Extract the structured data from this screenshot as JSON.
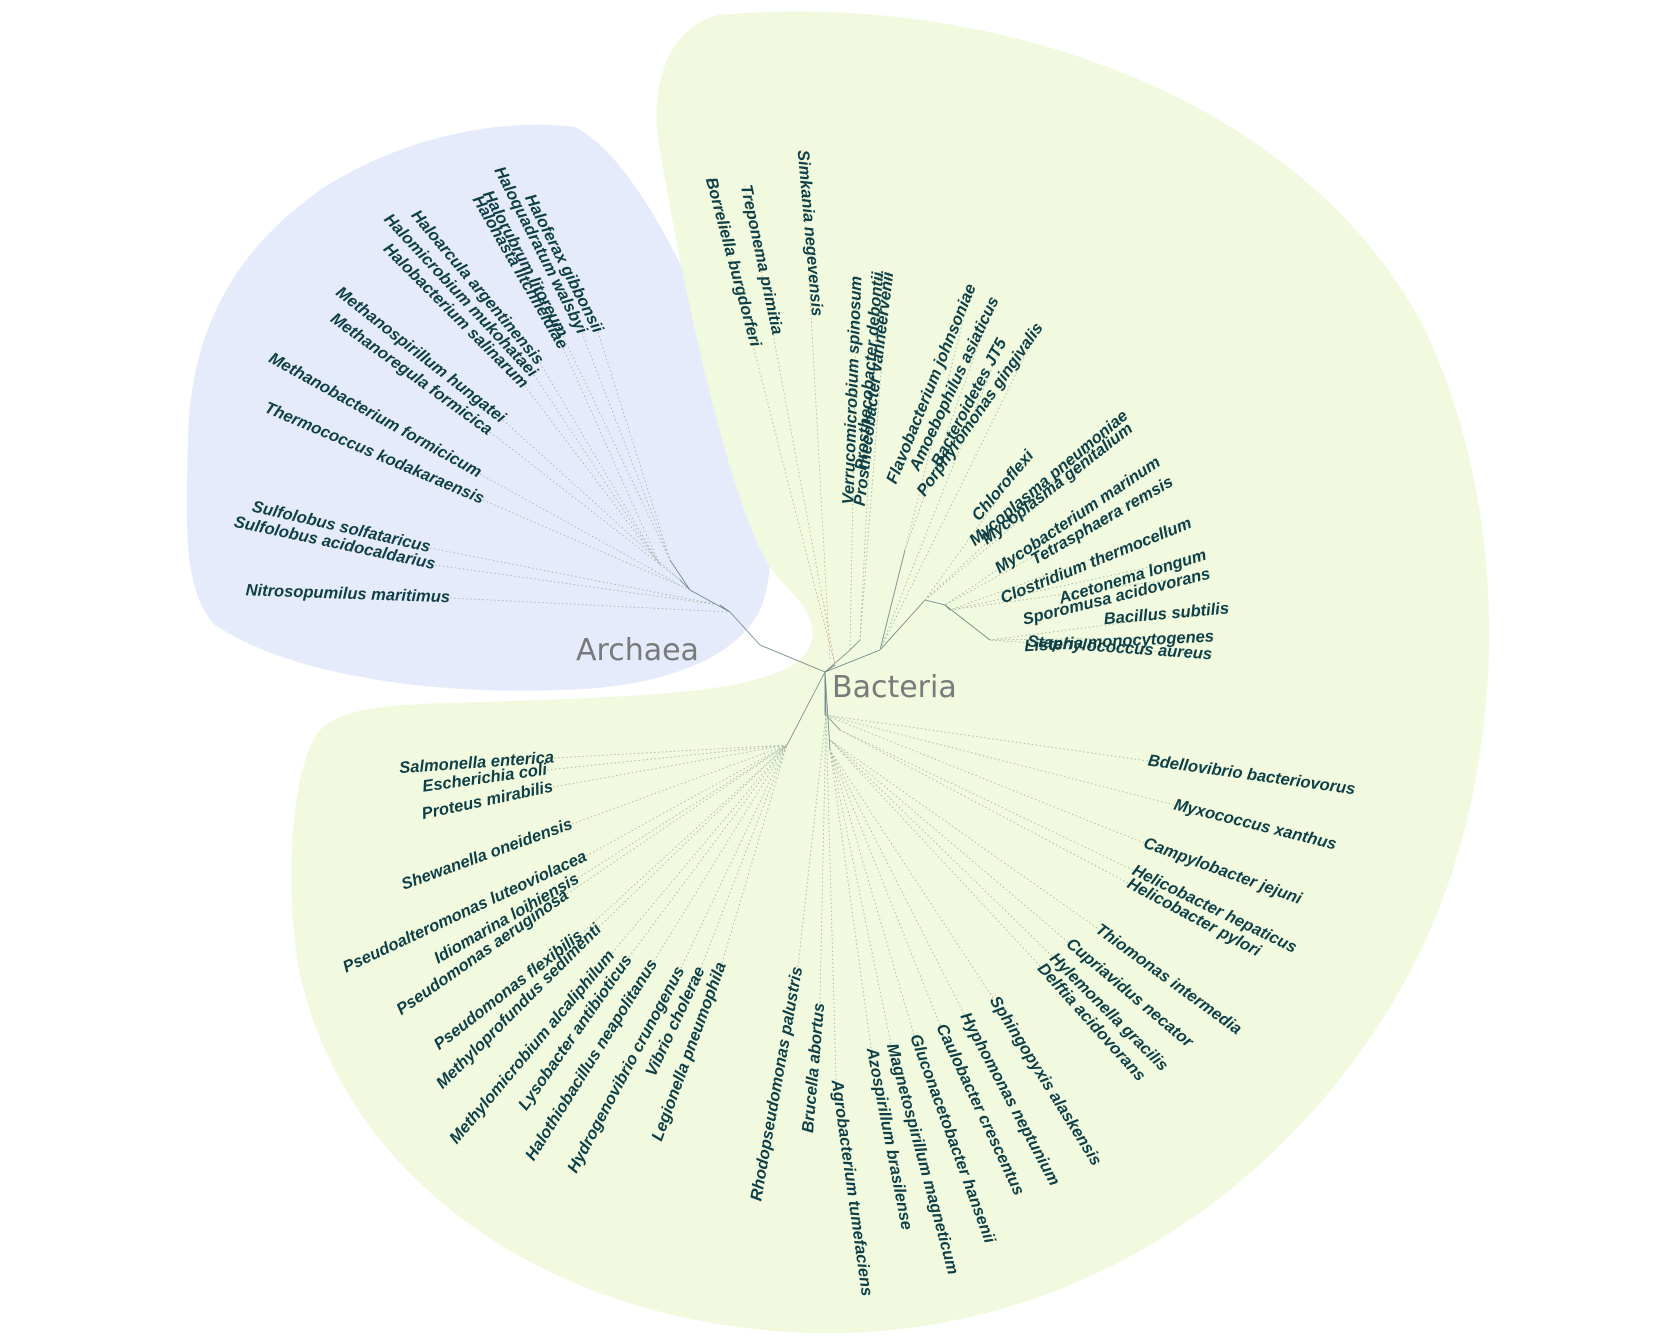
{
  "groups": {
    "archaea": {
      "label": "Archaea",
      "color": "#e6ebfb"
    },
    "bacteria": {
      "label": "Bacteria",
      "color": "#f1fadf"
    }
  },
  "colors": {
    "text": "#0e3f46",
    "branch": "#6b8486",
    "dots": "#9fb0a0"
  },
  "archaea_leaves": [
    "Haloferax gibbonsii",
    "Haloquadratum walsbyi",
    "Halorubrum litoreum",
    "Halohasta litchfieldiae",
    "Haloarcula argentinensis",
    "Halomicrobium mukohataei",
    "Halobacterium salinarum",
    "Methanospirillum hungatei",
    "Methanoregula formicica",
    "Methanobacterium formicicum",
    "Thermococcus kodakaraensis",
    "Sulfolobus solfataricus",
    "Sulfolobus acidocaldarius",
    "Nitrosopumilus maritimus"
  ],
  "bacteria_leaves": [
    "Borreliella burgdorferi",
    "Treponema primitia",
    "Simkania negevensis",
    "Verrucomicrobium spinosum",
    "Prosthecobacter debontii",
    "Prosthecobacter vanneervenii",
    "Flavobacterium johnsoniae",
    "Amoebophilus asiaticus",
    "Bacteroidetes JT5",
    "Porphyromonas gingivalis",
    "Chloroflexi",
    "Mycoplasma pneumoniae",
    "Mycoplasma genitalium",
    "Mycobacterium marinum",
    "Tetrasphaera remsis",
    "Clostridium thermocellum",
    "Acetonema longum",
    "Sporomusa acidovorans",
    "Bacillus subtilis",
    "Listeria monocytogenes",
    "Staphylococcus aureus",
    "Bdellovibrio bacteriovorus",
    "Myxococcus xanthus",
    "Campylobacter jejuni",
    "Helicobacter hepaticus",
    "Helicobacter pylori",
    "Thiomonas intermedia",
    "Cupriavidus necator",
    "Hylemonella gracilis",
    "Delftia acidovorans",
    "Sphingopyxis alaskensis",
    "Hyphomonas neptunium",
    "Caulobacter crescentus",
    "Gluconacetobacter hansenii",
    "Magnetospirillum magneticum",
    "Azospirillum brasilense",
    "Agrobacterium tumefaciens",
    "Brucella abortus",
    "Rhodopseudomonas palustris",
    "Legionella pneumophila",
    "Vibrio cholerae",
    "Hydrogenovibrio crunogenus",
    "Halothiobacillus neapolitanus",
    "Lysobacter antibioticus",
    "Methylomicrobium alcaliphilum",
    "Methyloprofundus sedimenti",
    "Pseudomonas flexibilis",
    "Pseudomonas aeruginosa",
    "Idiomarina loihiensis",
    "Pseudoalteromonas luteoviolacea",
    "Shewanella oneidensis",
    "Proteus mirabilis",
    "Escherichia coli",
    "Salmonella enterica"
  ]
}
